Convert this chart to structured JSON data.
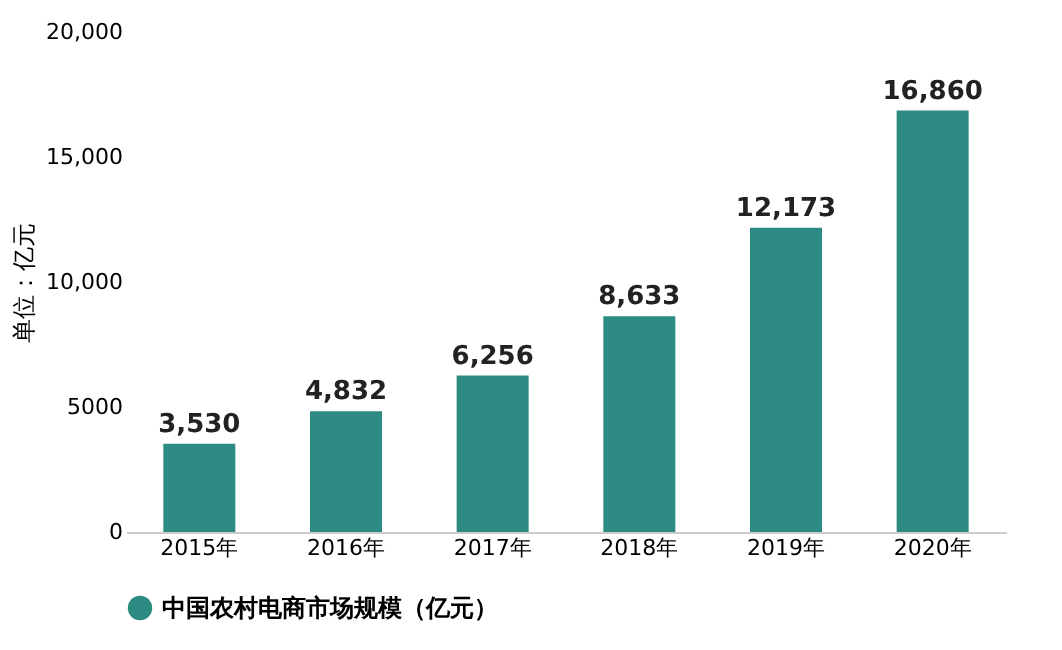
{
  "chart_data": {
    "type": "bar",
    "ylabel": "单位：亿元",
    "categories": [
      "2015年",
      "2016年",
      "2017年",
      "2018年",
      "2019年",
      "2020年"
    ],
    "series": [
      {
        "name": "中国农村电商市场规模（亿元）",
        "color": "#2e8b84",
        "values": [
          3530,
          4832,
          6256,
          8633,
          12173,
          16860
        ]
      }
    ],
    "value_labels": [
      "3,530",
      "4,832",
      "6,256",
      "8,633",
      "12,173",
      "16,860"
    ],
    "ylim": [
      0,
      20000
    ],
    "yticks": [
      {
        "value": 0,
        "label": "0"
      },
      {
        "value": 5000,
        "label": "5000"
      },
      {
        "value": 10000,
        "label": "10,000"
      },
      {
        "value": 15000,
        "label": "15,000"
      },
      {
        "value": 20000,
        "label": "20,000"
      }
    ],
    "grid": false,
    "legend": "bottom"
  }
}
